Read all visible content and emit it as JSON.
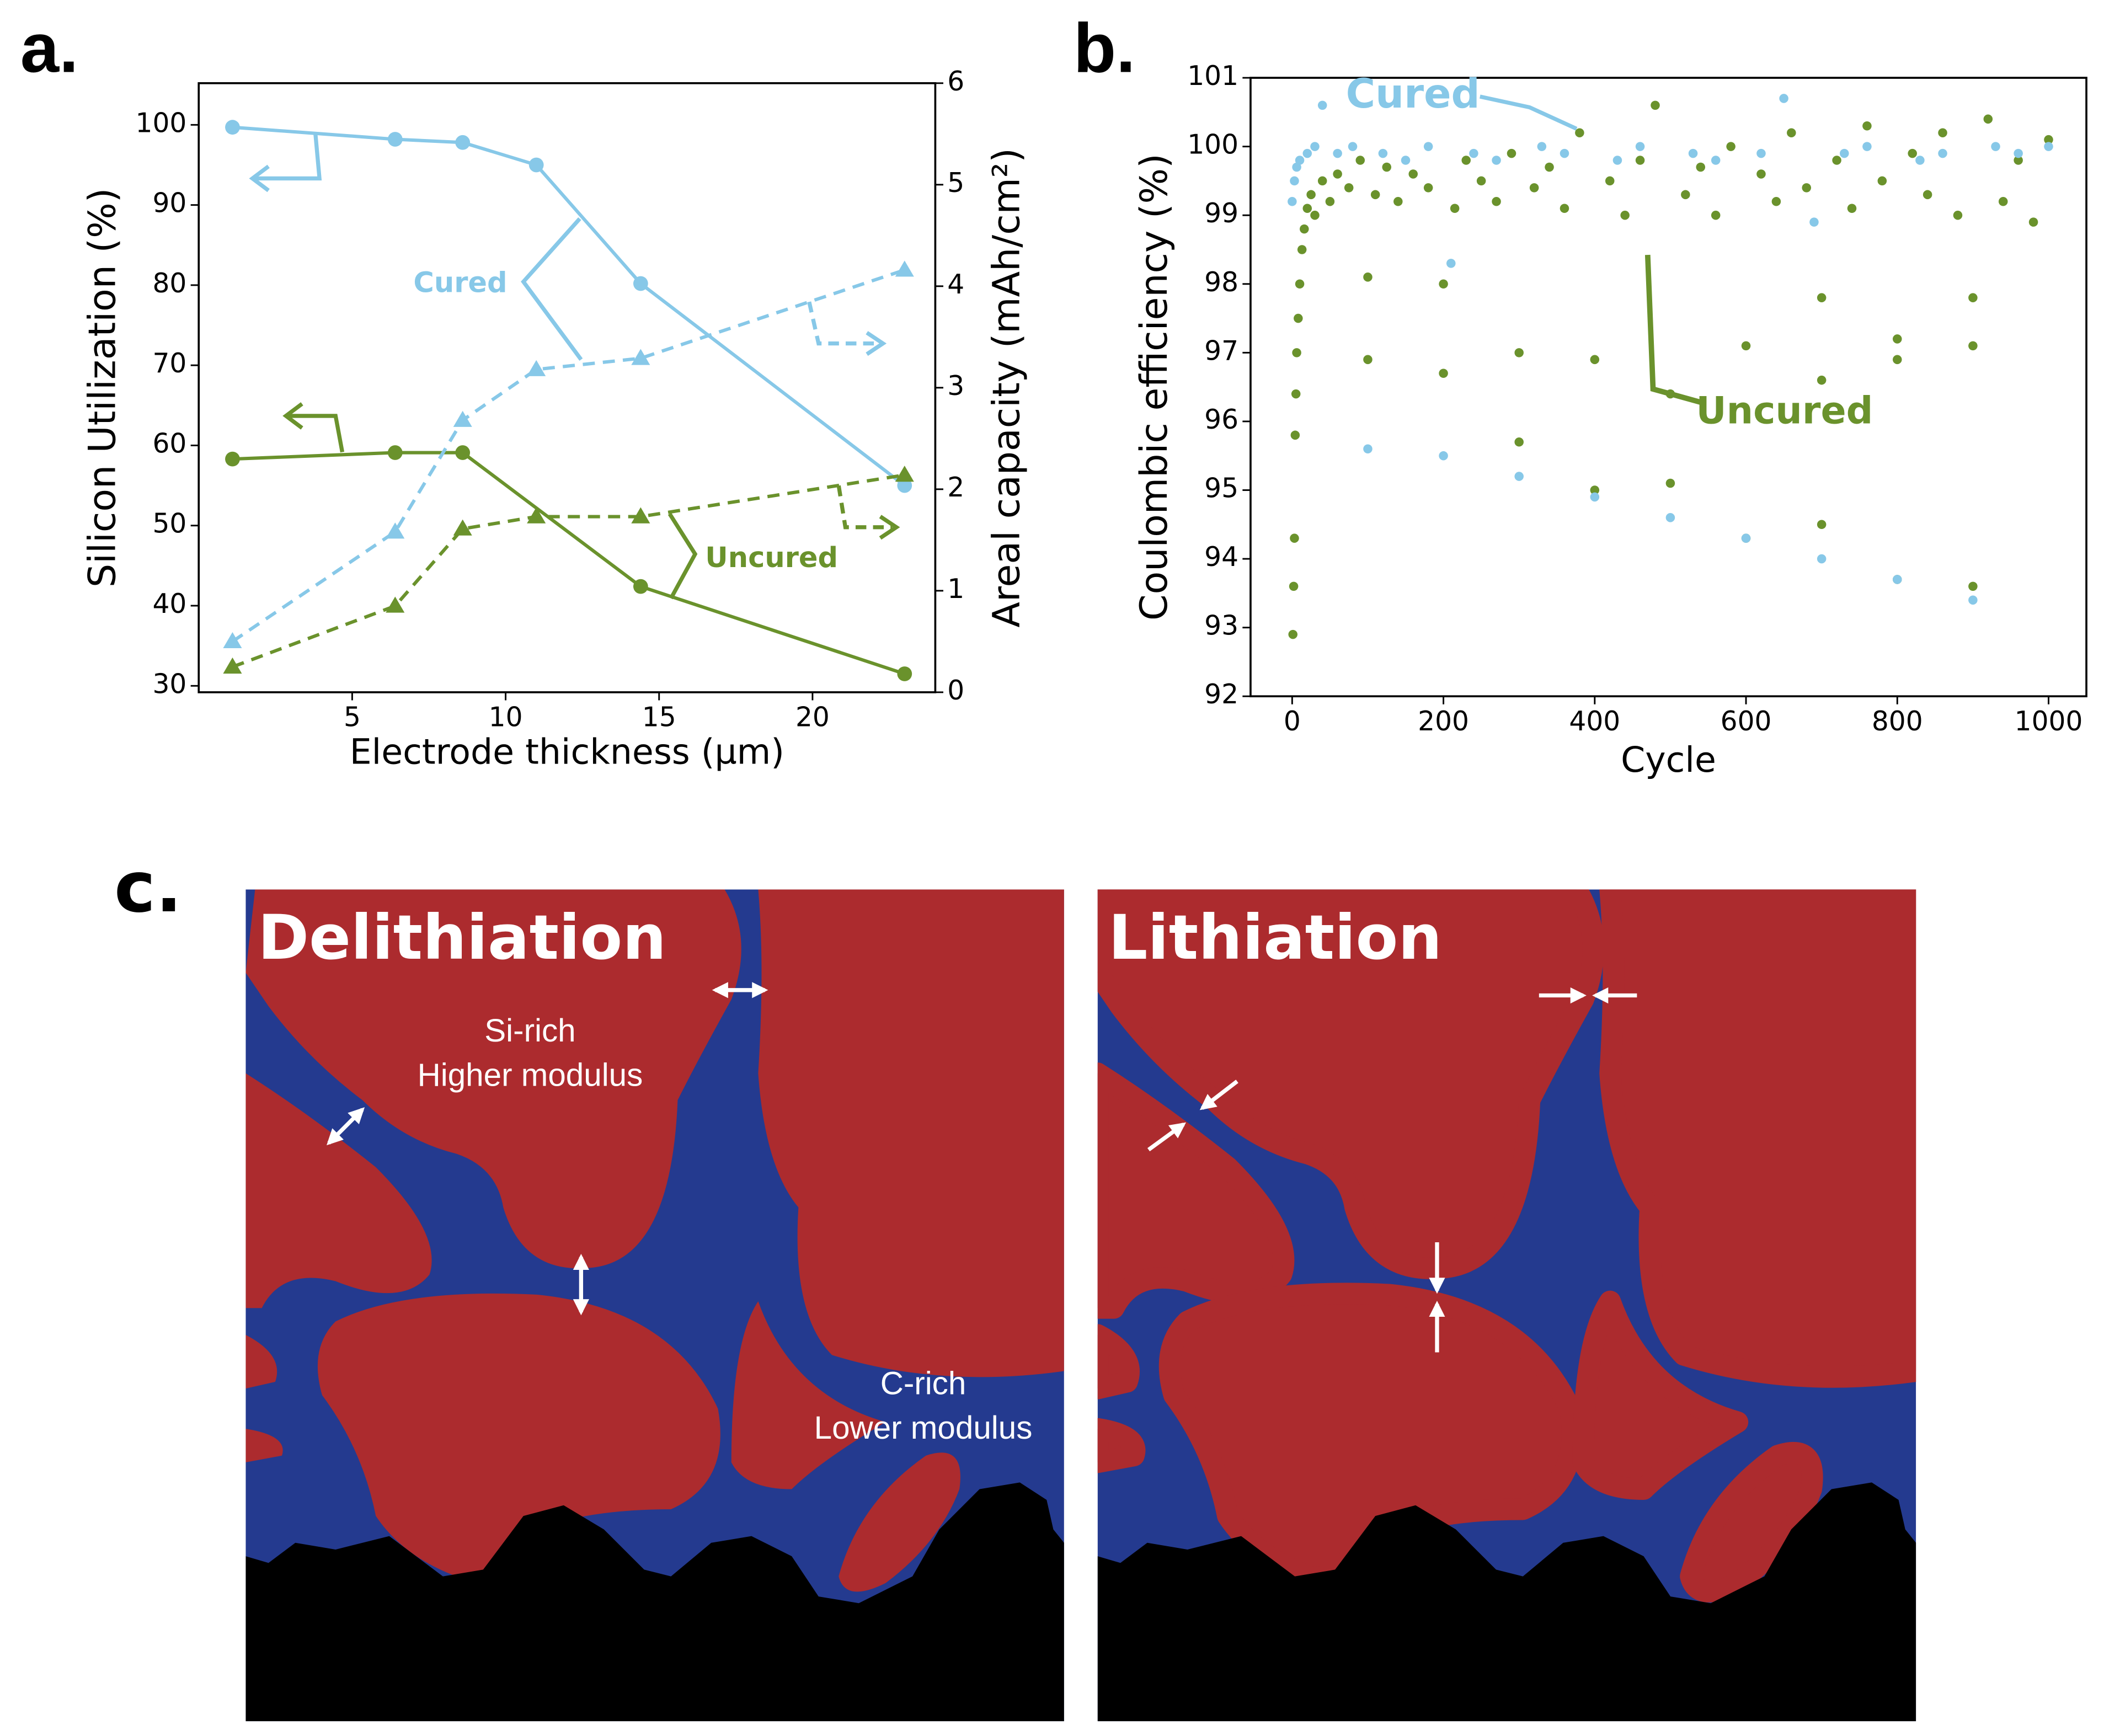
{
  "chart_data": [
    {
      "type": "line",
      "panel_label": "a.",
      "xlabel": "Electrode thickness (µm)",
      "ylabel": "Silicon Utilization (%)",
      "y2label": "Areal capacity (mAh/cm²)",
      "xlim": [
        0,
        24
      ],
      "xticks": [
        5,
        10,
        15,
        20
      ],
      "ylim": [
        29.2,
        105.2
      ],
      "yticks": [
        30,
        40,
        50,
        60,
        70,
        80,
        90,
        100
      ],
      "y2lim": [
        0,
        6
      ],
      "y2ticks": [
        0,
        1,
        2,
        3,
        4,
        5,
        6
      ],
      "annotations": [
        {
          "text": "Cured",
          "color": "#87c8e8"
        },
        {
          "text": "Uncured",
          "color": "#6a922c"
        }
      ],
      "series": [
        {
          "color": "#87c8e8",
          "marker": "circle",
          "linestyle": "solid",
          "x": [
            1.1,
            6.4,
            8.6,
            11,
            14.4,
            23
          ],
          "values": [
            99.7,
            98.2,
            97.8,
            95,
            80.2,
            55
          ]
        },
        {
          "color": "#6a922c",
          "marker": "circle",
          "linestyle": "solid",
          "x": [
            1.1,
            6.4,
            8.6,
            14.4,
            23
          ],
          "values": [
            58.3,
            59.1,
            59.1,
            42.4,
            31.5
          ]
        },
        {
          "color": "#87c8e8",
          "marker": "triangle",
          "linestyle": "dashed",
          "axis": "y2",
          "x": [
            1.1,
            6.4,
            8.6,
            11,
            14.4,
            23
          ],
          "values": [
            0.5,
            1.58,
            2.68,
            3.18,
            3.29,
            4.16
          ]
        },
        {
          "color": "#6a922c",
          "marker": "triangle",
          "linestyle": "dashed",
          "axis": "y2",
          "x": [
            1.1,
            6.4,
            8.6,
            11,
            14.4,
            23
          ],
          "values": [
            0.25,
            0.85,
            1.61,
            1.73,
            1.73,
            2.14
          ]
        }
      ]
    },
    {
      "type": "scatter",
      "panel_label": "b.",
      "xlabel": "Cycle",
      "ylabel": "Coulombic efficiency (%)",
      "xlim": [
        -55,
        1050
      ],
      "xticks": [
        0,
        200,
        400,
        600,
        800,
        1000
      ],
      "ylim": [
        92,
        101
      ],
      "yticks": [
        92,
        93,
        94,
        95,
        96,
        97,
        98,
        99,
        100,
        101
      ],
      "annotations": [
        {
          "text": "Cured",
          "color": "#87c8e8"
        },
        {
          "text": "Uncured",
          "color": "#6a922c"
        }
      ],
      "series": [
        {
          "color": "#6a922c",
          "x": [
            1,
            2,
            3,
            4,
            5,
            6,
            8,
            10,
            13,
            16,
            20,
            25,
            30,
            40,
            50,
            60,
            75,
            90,
            100,
            100,
            110,
            125,
            140,
            160,
            180,
            200,
            200,
            215,
            230,
            250,
            270,
            290,
            300,
            300,
            320,
            340,
            360,
            380,
            400,
            400,
            420,
            440,
            460,
            480,
            500,
            500,
            520,
            540,
            560,
            580,
            600,
            600,
            620,
            640,
            660,
            680,
            700,
            700,
            700,
            720,
            740,
            760,
            780,
            800,
            800,
            800,
            820,
            840,
            860,
            880,
            900,
            900,
            900,
            920,
            940,
            960,
            980,
            1000
          ],
          "values": [
            92.9,
            93.6,
            94.3,
            95.8,
            96.4,
            97.0,
            97.5,
            98.0,
            98.5,
            98.8,
            99.1,
            99.3,
            99.0,
            99.5,
            99.2,
            99.6,
            99.4,
            99.8,
            98.1,
            96.9,
            99.3,
            99.7,
            99.2,
            99.6,
            99.4,
            98.0,
            96.7,
            99.1,
            99.8,
            99.5,
            99.2,
            99.9,
            97.0,
            95.7,
            99.4,
            99.7,
            99.1,
            100.2,
            96.9,
            95.0,
            99.5,
            99.0,
            99.8,
            100.6,
            96.4,
            95.1,
            99.3,
            99.7,
            99.0,
            100.0,
            97.1,
            94.3,
            99.6,
            99.2,
            100.2,
            99.4,
            97.8,
            96.6,
            94.5,
            99.8,
            99.1,
            100.3,
            99.5,
            97.2,
            96.9,
            93.7,
            99.9,
            99.3,
            100.2,
            99.0,
            97.8,
            97.1,
            93.6,
            100.4,
            99.2,
            99.8,
            98.9,
            100.1
          ]
        },
        {
          "color": "#87c8e8",
          "x": [
            0,
            3,
            6,
            10,
            20,
            30,
            40,
            60,
            80,
            100,
            120,
            150,
            180,
            200,
            210,
            240,
            270,
            300,
            330,
            360,
            400,
            430,
            460,
            500,
            530,
            560,
            600,
            620,
            650,
            690,
            700,
            730,
            760,
            800,
            830,
            860,
            900,
            930,
            960,
            1000
          ],
          "values": [
            99.2,
            99.5,
            99.7,
            99.8,
            99.9,
            100.0,
            100.6,
            99.9,
            100.0,
            95.6,
            99.9,
            99.8,
            100.0,
            95.5,
            98.3,
            99.9,
            99.8,
            95.2,
            100.0,
            99.9,
            94.9,
            99.8,
            100.0,
            94.6,
            99.9,
            99.8,
            94.3,
            99.9,
            100.7,
            98.9,
            94.0,
            99.9,
            100.0,
            93.7,
            99.8,
            99.9,
            93.4,
            100.0,
            99.9,
            100.0
          ]
        }
      ]
    }
  ],
  "diagram": {
    "panel_label": "c.",
    "panels": [
      {
        "title": "Delithiation",
        "labels": [
          "Si-rich",
          "Higher modulus",
          "C-rich",
          "Lower modulus"
        ]
      },
      {
        "title": "Lithiation"
      }
    ]
  }
}
